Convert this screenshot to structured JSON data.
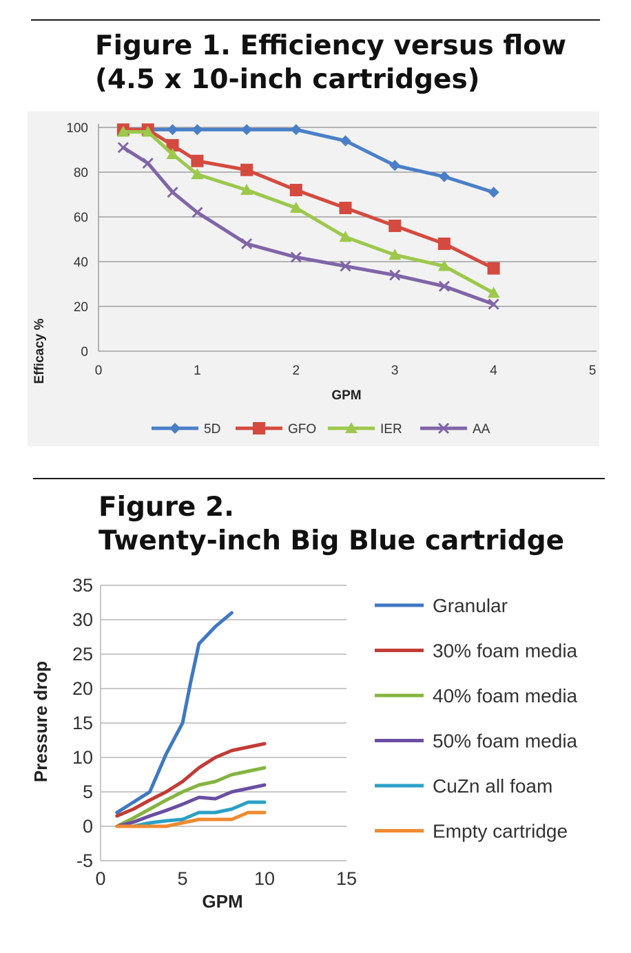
{
  "figures": [
    {
      "title_line1": "Figure 1. Efficiency versus flow",
      "title_line2": "(4.5 x 10-inch cartridges)"
    },
    {
      "title_line1": "Figure 2.",
      "title_line2": "Twenty-inch Big Blue cartridge"
    }
  ],
  "chart_data": [
    {
      "type": "line",
      "title": "Figure 1. Efficiency versus flow (4.5 x 10-inch cartridges)",
      "xlabel": "GPM",
      "ylabel": "Efficacy %",
      "xlim": [
        0,
        5
      ],
      "ylim": [
        0,
        100
      ],
      "xticks": [
        "0",
        "1",
        "2",
        "3",
        "4",
        "5"
      ],
      "yticks": [
        "0",
        "20",
        "40",
        "60",
        "80",
        "100"
      ],
      "grid": "horizontal",
      "legend_position": "bottom",
      "series": [
        {
          "name": "5D",
          "color": "#4a7fc8",
          "marker": "diamond",
          "x": [
            0.25,
            0.5,
            0.75,
            1,
            1.5,
            2,
            2.5,
            3,
            3.5,
            4
          ],
          "y": [
            99,
            99,
            99,
            99,
            99,
            99,
            94,
            83,
            78,
            71
          ]
        },
        {
          "name": "GFO",
          "color": "#d44a3f",
          "marker": "square",
          "x": [
            0.25,
            0.5,
            0.75,
            1,
            1.5,
            2,
            2.5,
            3,
            3.5,
            4
          ],
          "y": [
            99,
            99,
            92,
            85,
            81,
            72,
            64,
            56,
            48,
            37
          ]
        },
        {
          "name": "IER",
          "color": "#9cc84c",
          "marker": "triangle",
          "x": [
            0.25,
            0.5,
            0.75,
            1,
            1.5,
            2,
            2.5,
            3,
            3.5,
            4
          ],
          "y": [
            98,
            98,
            88,
            79,
            72,
            64,
            51,
            43,
            38,
            26
          ]
        },
        {
          "name": "AA",
          "color": "#8064a8",
          "marker": "x",
          "x": [
            0.25,
            0.5,
            0.75,
            1,
            1.5,
            2,
            2.5,
            3,
            3.5,
            4
          ],
          "y": [
            91,
            84,
            71,
            62,
            48,
            42,
            38,
            34,
            29,
            21
          ]
        }
      ]
    },
    {
      "type": "line",
      "title": "Figure 2. Twenty-inch Big Blue cartridge",
      "xlabel": "GPM",
      "ylabel": "Pressure drop",
      "xlim": [
        0,
        15
      ],
      "ylim": [
        -5,
        35
      ],
      "xticks": [
        "0",
        "5",
        "10",
        "15"
      ],
      "yticks": [
        "-5",
        "0",
        "5",
        "10",
        "15",
        "20",
        "25",
        "30",
        "35"
      ],
      "grid": "horizontal",
      "legend_position": "right",
      "series": [
        {
          "name": "Granular",
          "color": "#3f78c2",
          "x": [
            1,
            2,
            3,
            4,
            5,
            5.5,
            6,
            7,
            8
          ],
          "y": [
            2,
            3.5,
            5,
            10.5,
            15,
            21,
            26.5,
            29,
            31
          ]
        },
        {
          "name": "30% foam media",
          "color": "#c23b35",
          "x": [
            1,
            2,
            3,
            4,
            5,
            6,
            7,
            8,
            9,
            10
          ],
          "y": [
            1.5,
            2.5,
            3.8,
            5,
            6.5,
            8.5,
            10,
            11,
            11.5,
            12
          ]
        },
        {
          "name": "40% foam media",
          "color": "#84b441",
          "x": [
            1,
            2,
            3,
            4,
            5,
            6,
            7,
            8,
            9,
            10
          ],
          "y": [
            0,
            1.2,
            2.5,
            3.8,
            5,
            6,
            6.5,
            7.5,
            8,
            8.5
          ]
        },
        {
          "name": "50% foam media",
          "color": "#6a4ea2",
          "x": [
            1,
            2,
            3,
            4,
            5,
            6,
            7,
            8,
            9,
            10
          ],
          "y": [
            0,
            0.6,
            1.5,
            2.3,
            3.2,
            4.2,
            4,
            5,
            5.5,
            6
          ]
        },
        {
          "name": "CuZn all foam",
          "color": "#2aa0c6",
          "x": [
            1,
            2,
            3,
            4,
            5,
            6,
            7,
            8,
            9,
            10
          ],
          "y": [
            0,
            0,
            0.5,
            0.8,
            1,
            2,
            2,
            2.5,
            3.5,
            3.5
          ]
        },
        {
          "name": "Empty cartridge",
          "color": "#ef8a30",
          "x": [
            1,
            2,
            3,
            4,
            5,
            6,
            7,
            8,
            9,
            10
          ],
          "y": [
            0,
            0,
            0,
            0,
            0.5,
            1,
            1,
            1,
            2,
            2
          ]
        }
      ]
    }
  ]
}
